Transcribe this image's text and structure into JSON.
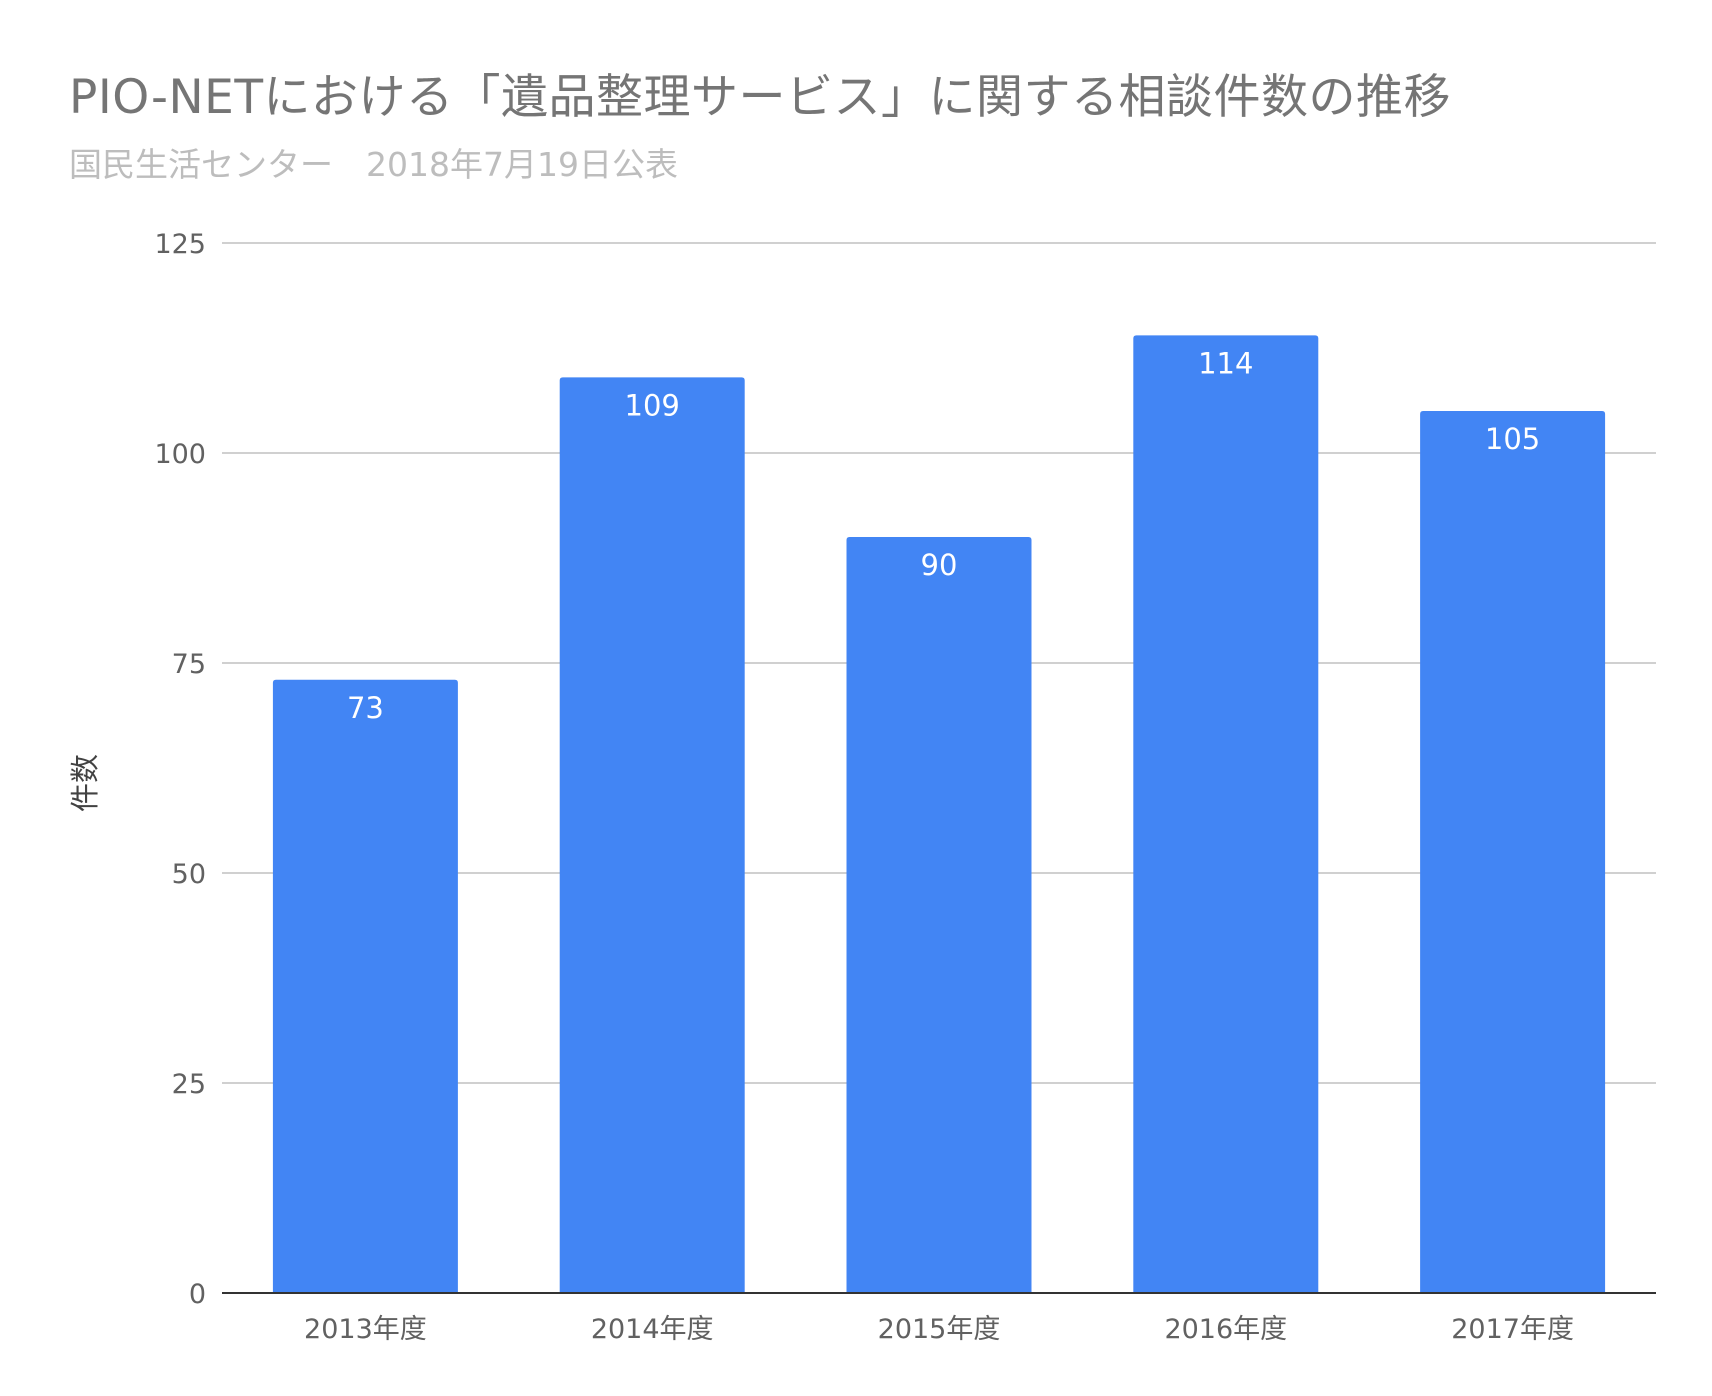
{
  "colors": {
    "bar": "#4285f4",
    "gridline": "#d0d0d0",
    "baseline": "#333333",
    "title": "#757575",
    "subtitle": "#bdbdbd",
    "tick_text": "#616161",
    "data_label_text": "#ffffff"
  },
  "chart_data": {
    "type": "bar",
    "title": "PIO-NETにおける「遺品整理サービス」に関する相談件数の推移",
    "subtitle": "国民生活センター　2018年7月19日公表",
    "xlabel": "",
    "ylabel": "件数",
    "categories": [
      "2013年度",
      "2014年度",
      "2015年度",
      "2016年度",
      "2017年度"
    ],
    "values": [
      73,
      109,
      90,
      114,
      105
    ],
    "ylim": [
      0,
      125
    ],
    "yticks": [
      0,
      25,
      50,
      75,
      100,
      125
    ],
    "grid": true,
    "legend": "none",
    "data_labels": true
  }
}
